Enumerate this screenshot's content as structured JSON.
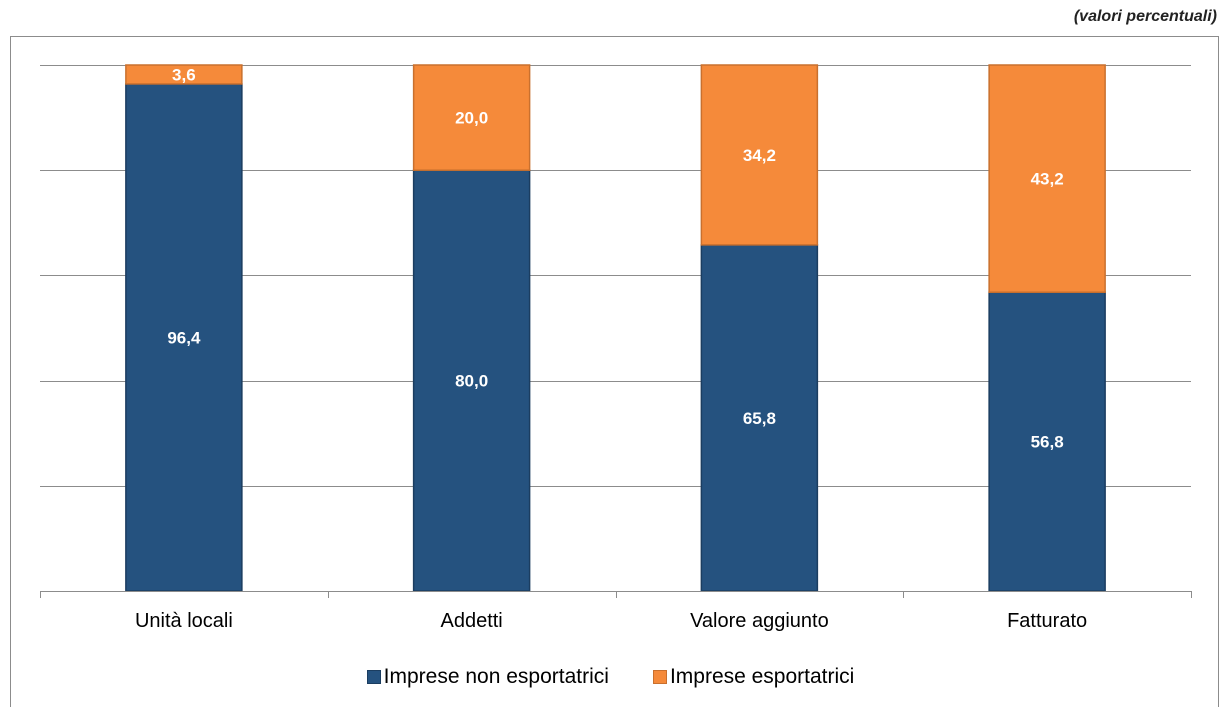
{
  "unit_note": "(valori percentuali)",
  "colors": {
    "non_exporting": "#25527f",
    "exporting": "#f58a3a",
    "grid": "#8c8c8c",
    "label_text": "#ffffff"
  },
  "chart_data": {
    "type": "bar",
    "stacked": true,
    "categories": [
      "Unità locali",
      "Addetti",
      "Valore aggiunto",
      "Fatturato"
    ],
    "series": [
      {
        "name": "Imprese non esportatrici",
        "values": [
          96.4,
          80.0,
          65.8,
          56.8
        ],
        "labels": [
          "96,4",
          "80,0",
          "65,8",
          "56,8"
        ]
      },
      {
        "name": "Imprese esportatrici",
        "values": [
          3.6,
          20.0,
          34.2,
          43.2
        ],
        "labels": [
          "3,6",
          "20,0",
          "34,2",
          "43,2"
        ]
      }
    ],
    "title": "",
    "xlabel": "",
    "ylabel": "",
    "ylim": [
      0,
      100
    ],
    "grid": true,
    "legend_position": "bottom"
  }
}
